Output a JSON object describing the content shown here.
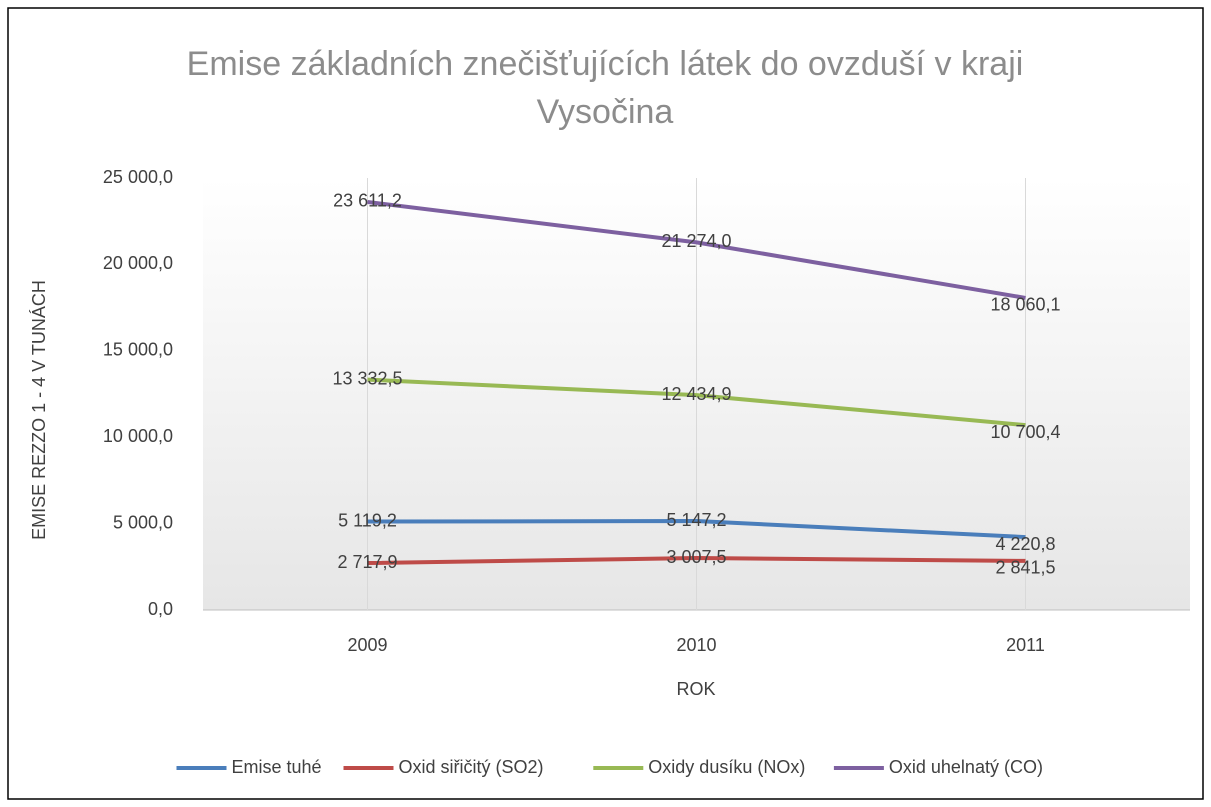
{
  "chart_data": {
    "type": "line",
    "title": "Emise základních znečišťujících látek do ovzduší v kraji Vysočina",
    "xlabel": "ROK",
    "ylabel": "EMISE REZZO 1 - 4 V TUNÁCH",
    "categories": [
      "2009",
      "2010",
      "2011"
    ],
    "series": [
      {
        "name": "Emise tuhé",
        "color": "#4a7ebb",
        "values": [
          5119.2,
          5147.2,
          4220.8
        ],
        "value_labels": [
          "5 119,2",
          "5 147,2",
          "4 220,8"
        ]
      },
      {
        "name": "Oxid siřičitý (SO2)",
        "color": "#be4b48",
        "values": [
          2717.9,
          3007.5,
          2841.5
        ],
        "value_labels": [
          "2 717,9",
          "3 007,5",
          "2 841,5"
        ]
      },
      {
        "name": "Oxidy dusíku (NOx)",
        "color": "#98b954",
        "values": [
          13332.5,
          12434.9,
          10700.4
        ],
        "value_labels": [
          "13 332,5",
          "12 434,9",
          "10 700,4"
        ]
      },
      {
        "name": "Oxid uhelnatý (CO)",
        "color": "#7d60a0",
        "values": [
          23611.2,
          21274.0,
          18060.1
        ],
        "value_labels": [
          "23 611,2",
          "21 274,0",
          "18 060,1"
        ]
      }
    ],
    "ylim": [
      0,
      25000
    ],
    "yticks": [
      {
        "value": 0,
        "label": "0,0"
      },
      {
        "value": 5000,
        "label": "5 000,0"
      },
      {
        "value": 10000,
        "label": "10 000,0"
      },
      {
        "value": 15000,
        "label": "15 000,0"
      },
      {
        "value": 20000,
        "label": "20 000,0"
      },
      {
        "value": 25000,
        "label": "25 000,0"
      }
    ],
    "grid": "x",
    "legend": "bottom"
  }
}
